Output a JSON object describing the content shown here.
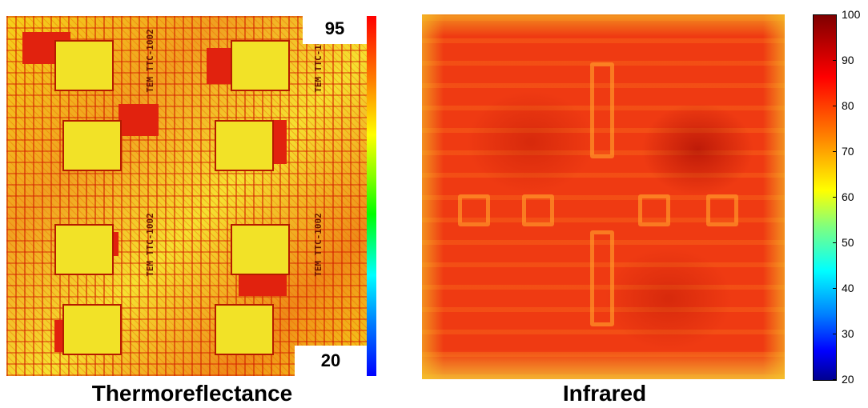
{
  "thermoreflectance": {
    "caption": "Thermoreflectance",
    "scale_max": "95",
    "scale_min": "20",
    "chip_labels": [
      "TEM",
      "TTC-",
      "1002"
    ]
  },
  "infrared": {
    "caption": "Infrared",
    "colorbar_ticks": [
      "100",
      "90",
      "80",
      "70",
      "60",
      "50",
      "40",
      "30",
      "20"
    ]
  }
}
